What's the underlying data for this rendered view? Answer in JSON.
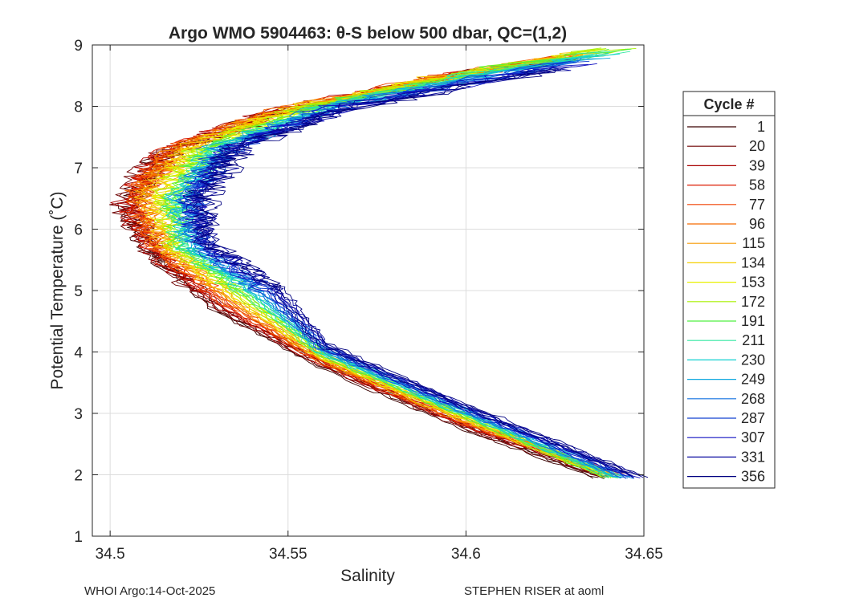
{
  "chart_data": {
    "type": "line",
    "title": "Argo WMO 5904463: θ-S below 500 dbar,  QC=(1,2)",
    "xlabel": "Salinity",
    "ylabel": "Potential Temperature (˚C)",
    "xlim": [
      34.495,
      34.65
    ],
    "ylim": [
      1,
      9
    ],
    "xticks": [
      34.5,
      34.55,
      34.6,
      34.65
    ],
    "xtick_labels": [
      "34.5",
      "34.55",
      "34.6",
      "34.65"
    ],
    "yticks": [
      1,
      2,
      3,
      4,
      5,
      6,
      7,
      8,
      9
    ],
    "ytick_labels": [
      "1",
      "2",
      "3",
      "4",
      "5",
      "6",
      "7",
      "8",
      "9"
    ],
    "grid": true,
    "legend": {
      "title": "Cycle #",
      "placement": "right",
      "entries": [
        "1",
        "20",
        "39",
        "58",
        "77",
        "96",
        "115",
        "134",
        "153",
        "172",
        "191",
        "211",
        "230",
        "249",
        "268",
        "287",
        "307",
        "331",
        "356"
      ],
      "colors": [
        "#3a0000",
        "#6e0000",
        "#a80000",
        "#dc1a00",
        "#f04000",
        "#f56a00",
        "#f79a00",
        "#f5d000",
        "#e8f000",
        "#a8f000",
        "#50f040",
        "#30e8a0",
        "#10d0d0",
        "#10a8e0",
        "#1070e0",
        "#1040d0",
        "#1010c0",
        "#0a0aa0",
        "#000080"
      ]
    },
    "series_note": "Each cycle is a theta-S profile; representative turning-point salinity per cycle",
    "series": [
      {
        "name": "1",
        "points": [
          [
            34.637,
            1.95
          ],
          [
            34.6,
            2.75
          ],
          [
            34.56,
            3.75
          ],
          [
            34.53,
            4.7
          ],
          [
            34.512,
            5.6
          ],
          [
            34.505,
            6.4
          ],
          [
            34.515,
            7.2
          ],
          [
            34.545,
            7.85
          ],
          [
            34.59,
            8.4
          ],
          [
            34.625,
            8.75
          ]
        ]
      },
      {
        "name": "20",
        "points": [
          [
            34.638,
            1.97
          ],
          [
            34.6,
            2.78
          ],
          [
            34.56,
            3.78
          ],
          [
            34.53,
            4.72
          ],
          [
            34.511,
            5.62
          ],
          [
            34.504,
            6.42
          ],
          [
            34.514,
            7.22
          ],
          [
            34.544,
            7.86
          ],
          [
            34.589,
            8.42
          ],
          [
            34.626,
            8.78
          ]
        ]
      },
      {
        "name": "39",
        "points": [
          [
            34.64,
            1.98
          ],
          [
            34.6,
            2.8
          ],
          [
            34.56,
            3.8
          ],
          [
            34.531,
            4.74
          ],
          [
            34.512,
            5.63
          ],
          [
            34.505,
            6.44
          ],
          [
            34.515,
            7.24
          ],
          [
            34.545,
            7.88
          ],
          [
            34.59,
            8.44
          ],
          [
            34.628,
            8.8
          ]
        ]
      },
      {
        "name": "58",
        "points": [
          [
            34.641,
            1.99
          ],
          [
            34.6,
            2.82
          ],
          [
            34.56,
            3.82
          ],
          [
            34.532,
            4.76
          ],
          [
            34.513,
            5.64
          ],
          [
            34.506,
            6.46
          ],
          [
            34.516,
            7.26
          ],
          [
            34.546,
            7.9
          ],
          [
            34.592,
            8.46
          ],
          [
            34.63,
            8.82
          ]
        ]
      },
      {
        "name": "77",
        "points": [
          [
            34.642,
            2.0
          ],
          [
            34.6,
            2.84
          ],
          [
            34.56,
            3.84
          ],
          [
            34.533,
            4.78
          ],
          [
            34.514,
            5.65
          ],
          [
            34.507,
            6.48
          ],
          [
            34.517,
            7.28
          ],
          [
            34.547,
            7.92
          ],
          [
            34.594,
            8.48
          ],
          [
            34.632,
            8.84
          ]
        ]
      },
      {
        "name": "96",
        "points": [
          [
            34.643,
            2.0
          ],
          [
            34.6,
            2.86
          ],
          [
            34.56,
            3.86
          ],
          [
            34.534,
            4.8
          ],
          [
            34.515,
            5.66
          ],
          [
            34.508,
            6.5
          ],
          [
            34.518,
            7.3
          ],
          [
            34.548,
            7.94
          ],
          [
            34.596,
            8.5
          ],
          [
            34.634,
            8.86
          ]
        ]
      },
      {
        "name": "115",
        "points": [
          [
            34.642,
            2.0
          ],
          [
            34.6,
            2.88
          ],
          [
            34.56,
            3.88
          ],
          [
            34.535,
            4.82
          ],
          [
            34.516,
            5.67
          ],
          [
            34.51,
            6.52
          ],
          [
            34.52,
            7.32
          ],
          [
            34.55,
            7.96
          ],
          [
            34.598,
            8.52
          ],
          [
            34.636,
            8.88
          ]
        ]
      },
      {
        "name": "134",
        "points": [
          [
            34.641,
            1.98
          ],
          [
            34.6,
            2.9
          ],
          [
            34.56,
            3.9
          ],
          [
            34.536,
            4.84
          ],
          [
            34.517,
            5.68
          ],
          [
            34.512,
            6.52
          ],
          [
            34.522,
            7.32
          ],
          [
            34.552,
            7.97
          ],
          [
            34.6,
            8.54
          ],
          [
            34.638,
            8.9
          ]
        ]
      },
      {
        "name": "153",
        "points": [
          [
            34.64,
            1.97
          ],
          [
            34.6,
            2.92
          ],
          [
            34.56,
            3.92
          ],
          [
            34.537,
            4.86
          ],
          [
            34.518,
            5.69
          ],
          [
            34.514,
            6.52
          ],
          [
            34.524,
            7.32
          ],
          [
            34.554,
            7.98
          ],
          [
            34.602,
            8.56
          ],
          [
            34.64,
            8.92
          ]
        ]
      },
      {
        "name": "172",
        "points": [
          [
            34.64,
            1.96
          ],
          [
            34.6,
            2.94
          ],
          [
            34.56,
            3.94
          ],
          [
            34.538,
            4.88
          ],
          [
            34.519,
            5.7
          ],
          [
            34.516,
            6.52
          ],
          [
            34.526,
            7.32
          ],
          [
            34.556,
            7.99
          ],
          [
            34.604,
            8.58
          ],
          [
            34.642,
            8.94
          ]
        ]
      },
      {
        "name": "191",
        "points": [
          [
            34.641,
            1.95
          ],
          [
            34.6,
            2.96
          ],
          [
            34.56,
            3.96
          ],
          [
            34.539,
            4.9
          ],
          [
            34.52,
            5.71
          ],
          [
            34.518,
            6.52
          ],
          [
            34.528,
            7.32
          ],
          [
            34.558,
            8.0
          ],
          [
            34.606,
            8.58
          ],
          [
            34.643,
            8.92
          ]
        ]
      },
      {
        "name": "211",
        "points": [
          [
            34.642,
            1.95
          ],
          [
            34.6,
            2.98
          ],
          [
            34.56,
            3.98
          ],
          [
            34.54,
            4.92
          ],
          [
            34.521,
            5.72
          ],
          [
            34.519,
            6.52
          ],
          [
            34.529,
            7.32
          ],
          [
            34.56,
            8.0
          ],
          [
            34.607,
            8.56
          ],
          [
            34.64,
            8.88
          ]
        ]
      },
      {
        "name": "230",
        "points": [
          [
            34.643,
            1.95
          ],
          [
            34.6,
            3.0
          ],
          [
            34.56,
            4.0
          ],
          [
            34.541,
            4.94
          ],
          [
            34.522,
            5.73
          ],
          [
            34.52,
            6.52
          ],
          [
            34.53,
            7.32
          ],
          [
            34.562,
            8.0
          ],
          [
            34.608,
            8.54
          ],
          [
            34.638,
            8.84
          ]
        ]
      },
      {
        "name": "249",
        "points": [
          [
            34.644,
            1.95
          ],
          [
            34.6,
            3.02
          ],
          [
            34.56,
            4.02
          ],
          [
            34.542,
            4.96
          ],
          [
            34.523,
            5.74
          ],
          [
            34.521,
            6.52
          ],
          [
            34.531,
            7.32
          ],
          [
            34.563,
            8.0
          ],
          [
            34.608,
            8.52
          ],
          [
            34.636,
            8.8
          ]
        ]
      },
      {
        "name": "268",
        "points": [
          [
            34.645,
            1.95
          ],
          [
            34.6,
            3.04
          ],
          [
            34.56,
            4.04
          ],
          [
            34.543,
            4.98
          ],
          [
            34.524,
            5.75
          ],
          [
            34.522,
            6.52
          ],
          [
            34.532,
            7.32
          ],
          [
            34.564,
            8.0
          ],
          [
            34.608,
            8.5
          ],
          [
            34.634,
            8.76
          ]
        ]
      },
      {
        "name": "287",
        "points": [
          [
            34.646,
            1.96
          ],
          [
            34.6,
            3.06
          ],
          [
            34.56,
            4.06
          ],
          [
            34.544,
            5.0
          ],
          [
            34.525,
            5.76
          ],
          [
            34.523,
            6.52
          ],
          [
            34.533,
            7.32
          ],
          [
            34.565,
            8.0
          ],
          [
            34.608,
            8.48
          ],
          [
            34.632,
            8.72
          ]
        ]
      },
      {
        "name": "307",
        "points": [
          [
            34.647,
            1.96
          ],
          [
            34.6,
            3.08
          ],
          [
            34.56,
            4.08
          ],
          [
            34.545,
            5.02
          ],
          [
            34.526,
            5.77
          ],
          [
            34.524,
            6.52
          ],
          [
            34.534,
            7.32
          ],
          [
            34.566,
            8.0
          ],
          [
            34.608,
            8.46
          ],
          [
            34.63,
            8.68
          ]
        ]
      },
      {
        "name": "331",
        "points": [
          [
            34.648,
            1.97
          ],
          [
            34.6,
            3.1
          ],
          [
            34.56,
            4.1
          ],
          [
            34.546,
            5.04
          ],
          [
            34.527,
            5.78
          ],
          [
            34.525,
            6.52
          ],
          [
            34.535,
            7.32
          ],
          [
            34.567,
            8.0
          ],
          [
            34.608,
            8.44
          ],
          [
            34.628,
            8.64
          ]
        ]
      },
      {
        "name": "356",
        "points": [
          [
            34.649,
            1.97
          ],
          [
            34.6,
            3.12
          ],
          [
            34.56,
            4.12
          ],
          [
            34.547,
            5.06
          ],
          [
            34.528,
            5.79
          ],
          [
            34.526,
            6.52
          ],
          [
            34.536,
            7.32
          ],
          [
            34.568,
            8.0
          ],
          [
            34.608,
            8.42
          ],
          [
            34.626,
            8.6
          ]
        ]
      }
    ]
  },
  "footer": {
    "left": "WHOI Argo:14-Oct-2025",
    "right": "STEPHEN RISER at aoml"
  }
}
